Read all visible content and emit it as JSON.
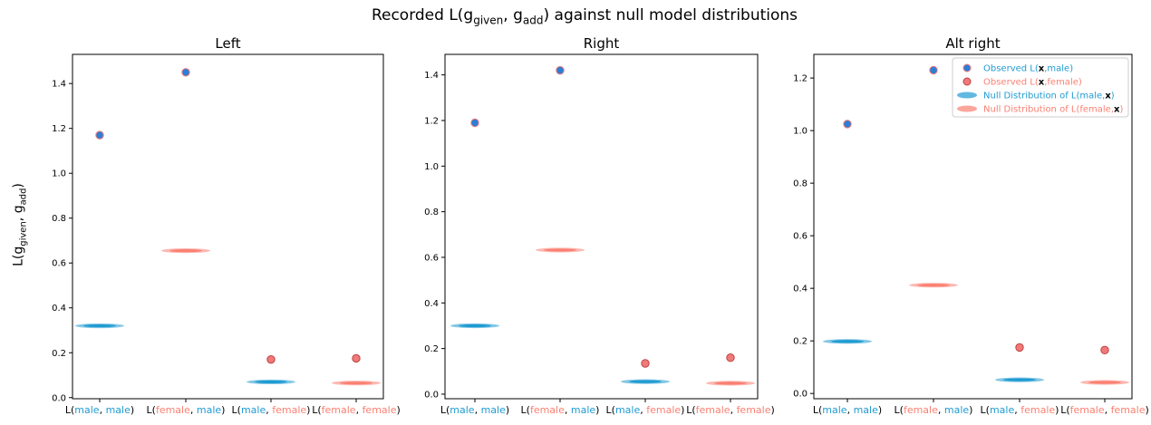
{
  "figure": {
    "suptitle_prefix": "Recorded L(g",
    "suptitle_sub1": "given",
    "suptitle_mid": ", g",
    "suptitle_sub2": "add",
    "suptitle_suffix": ") against null model distributions",
    "ylabel_prefix": "L(g",
    "ylabel_sub1": "given",
    "ylabel_mid": ", g",
    "ylabel_sub2": "add",
    "ylabel_suffix": ")"
  },
  "colors": {
    "male": "#1f9bd1",
    "female": "#fa8072",
    "observed_male_fill": "#2a7fd6",
    "observed_female_fill": "#f07a7a",
    "null_male": "#1f9bd1",
    "null_female": "#fa8072"
  },
  "legend": {
    "placement": "top-right",
    "entries": [
      {
        "text": "Observed L(x,male)",
        "pre": "Observed L(",
        "bold": "x",
        "post": ",male)",
        "color_key": "male",
        "marker": "dot-male"
      },
      {
        "text": "Observed L(x,female)",
        "pre": "Observed L(",
        "bold": "x",
        "post": ",female)",
        "color_key": "female",
        "marker": "dot-female"
      },
      {
        "text": "Null Distribution of L(male,x)",
        "pre": "Null Distribution of L(male,",
        "bold": "x",
        "post": ")",
        "color_key": "male",
        "marker": "ellipse-male"
      },
      {
        "text": "Null Distribution of L(female,x)",
        "pre": "Null Distribution of L(female,",
        "bold": "x",
        "post": ")",
        "color_key": "female",
        "marker": "ellipse-female"
      }
    ]
  },
  "categories": [
    {
      "parts": [
        {
          "t": "L(",
          "c": "black"
        },
        {
          "t": "male",
          "c": "male"
        },
        {
          "t": ", ",
          "c": "black"
        },
        {
          "t": "male",
          "c": "male"
        },
        {
          "t": ")",
          "c": "black"
        }
      ]
    },
    {
      "parts": [
        {
          "t": "L(",
          "c": "black"
        },
        {
          "t": "female",
          "c": "female"
        },
        {
          "t": ", ",
          "c": "black"
        },
        {
          "t": "male",
          "c": "male"
        },
        {
          "t": ")",
          "c": "black"
        }
      ]
    },
    {
      "parts": [
        {
          "t": "L(",
          "c": "black"
        },
        {
          "t": "male",
          "c": "male"
        },
        {
          "t": ", ",
          "c": "black"
        },
        {
          "t": "female",
          "c": "female"
        },
        {
          "t": ")",
          "c": "black"
        }
      ]
    },
    {
      "parts": [
        {
          "t": "L(",
          "c": "black"
        },
        {
          "t": "female",
          "c": "female"
        },
        {
          "t": ", ",
          "c": "black"
        },
        {
          "t": "female",
          "c": "female"
        },
        {
          "t": ")",
          "c": "black"
        }
      ]
    }
  ],
  "chart_data": [
    {
      "type": "scatter",
      "title": "Left",
      "categories": [
        "L(male, male)",
        "L(female, male)",
        "L(male, female)",
        "L(female, female)"
      ],
      "ylim": [
        -0.005,
        1.53
      ],
      "yticks": [
        0.0,
        0.2,
        0.4,
        0.6,
        0.8,
        1.0,
        1.2,
        1.4
      ],
      "observed": [
        1.17,
        1.45,
        0.17,
        0.175
      ],
      "observed_color": [
        "male",
        "male",
        "female",
        "female"
      ],
      "null_mean": [
        0.32,
        0.655,
        0.07,
        0.065
      ],
      "null_color": [
        "male",
        "female",
        "male",
        "female"
      ],
      "legend": false
    },
    {
      "type": "scatter",
      "title": "Right",
      "categories": [
        "L(male, male)",
        "L(female, male)",
        "L(male, female)",
        "L(female, female)"
      ],
      "ylim": [
        -0.02,
        1.49
      ],
      "yticks": [
        0.0,
        0.2,
        0.4,
        0.6,
        0.8,
        1.0,
        1.2,
        1.4
      ],
      "observed": [
        1.19,
        1.42,
        0.135,
        0.16
      ],
      "observed_color": [
        "male",
        "male",
        "female",
        "female"
      ],
      "null_mean": [
        0.3,
        0.632,
        0.055,
        0.048
      ],
      "null_color": [
        "male",
        "female",
        "male",
        "female"
      ],
      "legend": false
    },
    {
      "type": "scatter",
      "title": "Alt right",
      "categories": [
        "L(male, male)",
        "L(female, male)",
        "L(male, female)",
        "L(female, female)"
      ],
      "ylim": [
        -0.02,
        1.29
      ],
      "yticks": [
        0.0,
        0.2,
        0.4,
        0.6,
        0.8,
        1.0,
        1.2
      ],
      "observed": [
        1.025,
        1.23,
        0.175,
        0.165
      ],
      "observed_color": [
        "male",
        "male",
        "female",
        "female"
      ],
      "null_mean": [
        0.198,
        0.412,
        0.052,
        0.042
      ],
      "null_color": [
        "male",
        "female",
        "male",
        "female"
      ],
      "legend": true
    }
  ]
}
